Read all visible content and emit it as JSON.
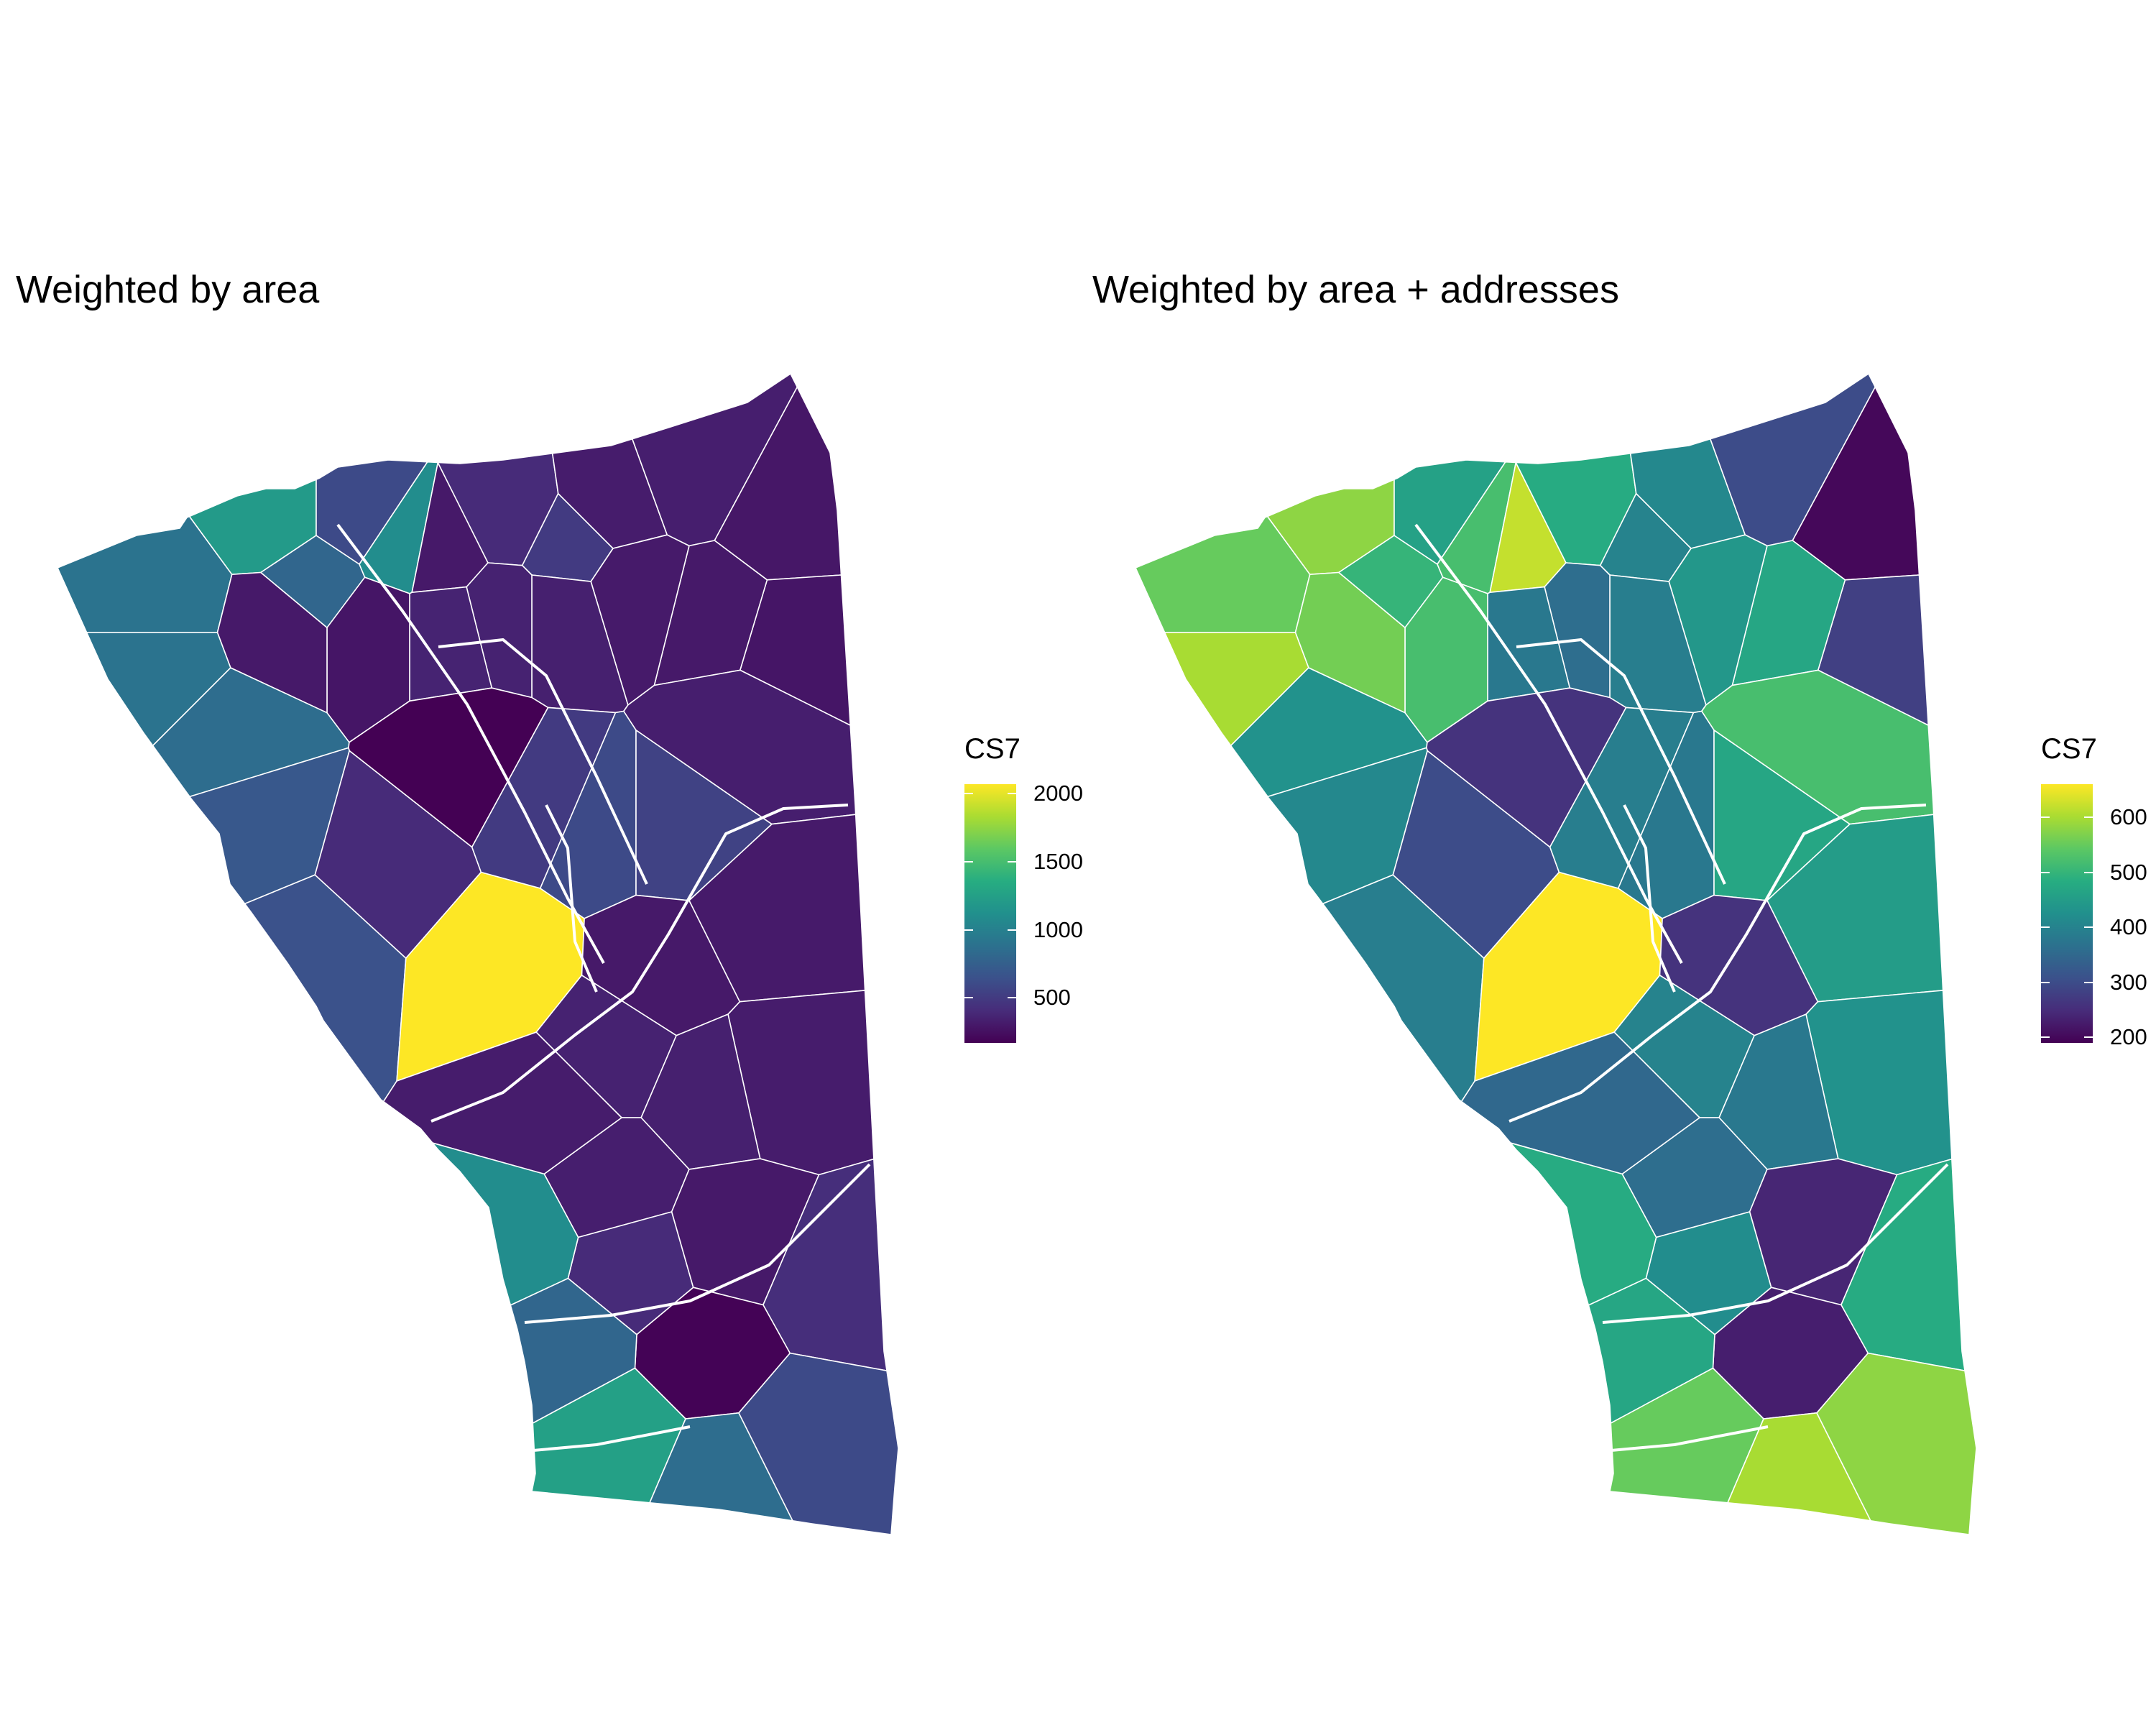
{
  "colors": {
    "scale": [
      "#440154",
      "#472c7a",
      "#3b518b",
      "#2c718e",
      "#21908d",
      "#27ad81",
      "#5cc863",
      "#aadc32",
      "#fde725"
    ],
    "boundary": "#ffffff",
    "background": "#ffffff"
  },
  "chart_data": [
    {
      "type": "choropleth",
      "title": "Weighted by area",
      "legend": {
        "title": "CS7",
        "position": "right",
        "range": [
          170,
          2070
        ],
        "ticks": [
          {
            "value": 500,
            "label": "500"
          },
          {
            "value": 1000,
            "label": "1000"
          },
          {
            "value": 1500,
            "label": "1500"
          },
          {
            "value": 2000,
            "label": "2000"
          }
        ]
      },
      "values": [
        900,
        1200,
        800,
        600,
        1100,
        300,
        400,
        500,
        320,
        330,
        290,
        280,
        300,
        310,
        340,
        350,
        360,
        280,
        300,
        900,
        850,
        700,
        650,
        400,
        170,
        2070,
        500,
        600,
        550,
        330,
        310,
        320,
        300,
        350,
        340,
        330,
        320,
        300,
        420,
        600,
        180,
        400,
        800,
        1100,
        1250,
        850
      ]
    },
    {
      "type": "choropleth",
      "title": "Weighted by area + addresses",
      "legend": {
        "title": "CS7",
        "position": "right",
        "range": [
          190,
          660
        ],
        "ticks": [
          {
            "value": 200,
            "label": "200"
          },
          {
            "value": 300,
            "label": "300"
          },
          {
            "value": 400,
            "label": "400"
          },
          {
            "value": 500,
            "label": "500"
          },
          {
            "value": 600,
            "label": "600"
          }
        ]
      },
      "values": [
        550,
        580,
        500,
        460,
        520,
        620,
        480,
        400,
        410,
        300,
        200,
        280,
        470,
        440,
        390,
        360,
        380,
        520,
        560,
        600,
        430,
        410,
        390,
        300,
        260,
        660,
        390,
        380,
        470,
        520,
        450,
        430,
        260,
        400,
        380,
        360,
        350,
        240,
        480,
        580,
        230,
        420,
        470,
        480,
        550,
        600
      ]
    }
  ]
}
